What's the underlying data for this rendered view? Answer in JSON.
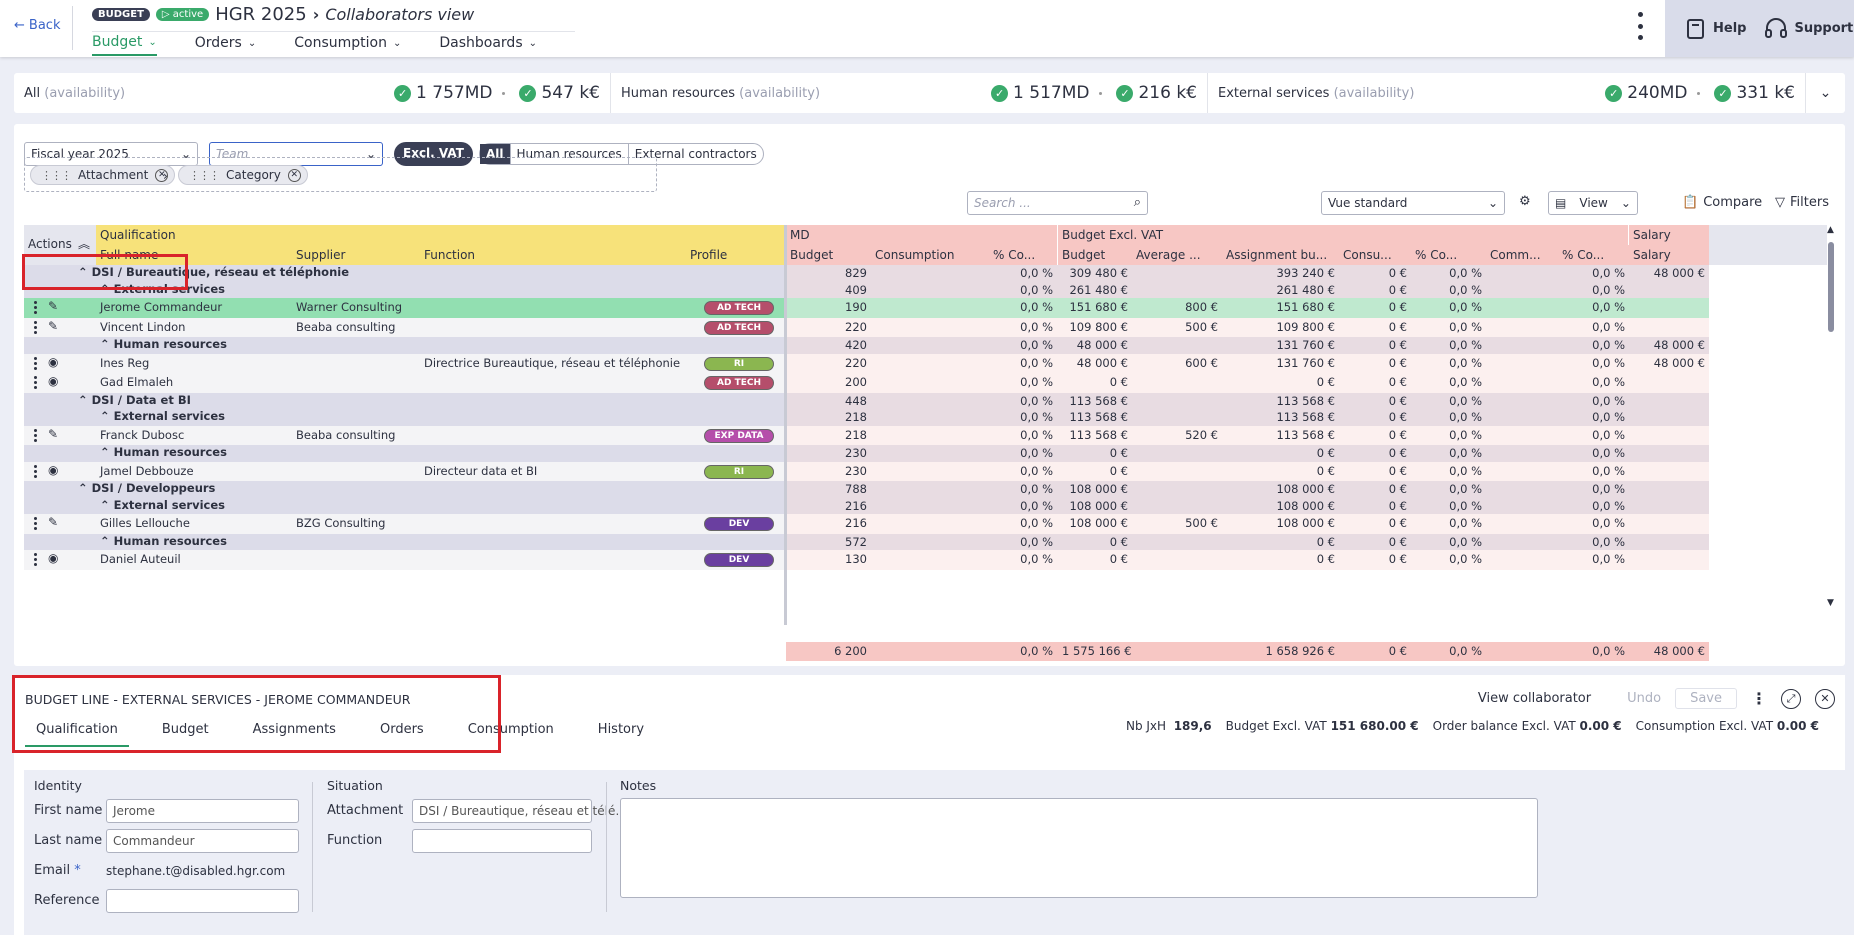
{
  "header": {
    "back": "Back",
    "badge_budget": "BUDGET",
    "badge_active": "active",
    "title": "HGR 2025",
    "crumb": "Collaborators view",
    "nav": [
      "Budget",
      "Orders",
      "Consumption",
      "Dashboards"
    ],
    "help": "Help",
    "support": "Support"
  },
  "summary": {
    "all_label": "All",
    "availability": "(availability)",
    "all_md": "1 757MD",
    "all_k": "547 k€",
    "hr_label": "Human resources",
    "hr_md": "1 517MD",
    "hr_k": "216 k€",
    "ext_label": "External services",
    "ext_md": "240MD",
    "ext_k": "331 k€"
  },
  "filters": {
    "fiscal_year": "Fiscal year 2025",
    "team_placeholder": "Team",
    "excl_vat": "Excl. VAT",
    "seg": [
      "All",
      "Human resources",
      "External contractors"
    ],
    "chip_attachment": "Attachment",
    "chip_category": "Category",
    "search_placeholder": "Search ...",
    "view_select": "Vue standard",
    "view": "View",
    "compare": "Compare",
    "filters": "Filters"
  },
  "grid": {
    "top_headers": {
      "actions": "Actions",
      "qualification": "Qualification",
      "md": "MD",
      "budget_excl": "Budget Excl. VAT",
      "salary": "Salary"
    },
    "sub_headers": {
      "full_name": "Full name",
      "supplier": "Supplier",
      "function": "Function",
      "profile": "Profile",
      "md_budget": "Budget",
      "md_consumption": "Consumption",
      "md_pct": "% Co...",
      "b_budget": "Budget",
      "b_avg": "Average ...",
      "b_assign": "Assignment bu...",
      "b_cons": "Consu...",
      "b_pct": "% Co...",
      "b_comm": "Comm...",
      "b_pct2": "% Co...",
      "salary": "Salary"
    },
    "rows": [
      {
        "type": "group",
        "level": 0,
        "name": "DSI / Bureautique, réseau et téléphonie",
        "md_budget": "829",
        "md_pct": "0,0 %",
        "b_budget": "309 480 €",
        "b_avg": "",
        "b_assign": "393 240 €",
        "b_cons": "0 €",
        "b_pct": "0,0 %",
        "b_pct2": "0,0 %",
        "salary": "48 000 €"
      },
      {
        "type": "group",
        "level": 1,
        "name": "External services",
        "md_budget": "409",
        "md_pct": "0,0 %",
        "b_budget": "261 480 €",
        "b_avg": "",
        "b_assign": "261 480 €",
        "b_cons": "0 €",
        "b_pct": "0,0 %",
        "b_pct2": "0,0 %",
        "salary": ""
      },
      {
        "type": "data",
        "sel": true,
        "icon": "edit",
        "name": "Jerome Commandeur",
        "supplier": "Warner Consulting",
        "function": "",
        "profile": "AD TECH",
        "md_budget": "190",
        "md_pct": "0,0 %",
        "b_budget": "151 680 €",
        "b_avg": "800 €",
        "b_assign": "151 680 €",
        "b_cons": "0 €",
        "b_pct": "0,0 %",
        "b_pct2": "0,0 %",
        "salary": ""
      },
      {
        "type": "data",
        "icon": "edit",
        "name": "Vincent Lindon",
        "supplier": "Beaba consulting",
        "function": "",
        "profile": "AD TECH",
        "md_budget": "220",
        "md_pct": "0,0 %",
        "b_budget": "109 800 €",
        "b_avg": "500 €",
        "b_assign": "109 800 €",
        "b_cons": "0 €",
        "b_pct": "0,0 %",
        "b_pct2": "0,0 %",
        "salary": ""
      },
      {
        "type": "group",
        "level": 1,
        "name": "Human resources",
        "md_budget": "420",
        "md_pct": "0,0 %",
        "b_budget": "48 000 €",
        "b_avg": "",
        "b_assign": "131 760 €",
        "b_cons": "0 €",
        "b_pct": "0,0 %",
        "b_pct2": "0,0 %",
        "salary": "48 000 €"
      },
      {
        "type": "data",
        "icon": "view",
        "name": "Ines Reg",
        "supplier": "",
        "function": "Directrice Bureautique, réseau et téléphonie",
        "profile": "RI",
        "md_budget": "220",
        "md_pct": "0,0 %",
        "b_budget": "48 000 €",
        "b_avg": "600 €",
        "b_assign": "131 760 €",
        "b_cons": "0 €",
        "b_pct": "0,0 %",
        "b_pct2": "0,0 %",
        "salary": "48 000 €"
      },
      {
        "type": "data",
        "icon": "view",
        "name": "Gad Elmaleh",
        "supplier": "",
        "function": "",
        "profile": "AD TECH",
        "md_budget": "200",
        "md_pct": "0,0 %",
        "b_budget": "0 €",
        "b_avg": "",
        "b_assign": "0 €",
        "b_cons": "0 €",
        "b_pct": "0,0 %",
        "b_pct2": "0,0 %",
        "salary": ""
      },
      {
        "type": "group",
        "level": 0,
        "name": "DSI / Data et BI",
        "md_budget": "448",
        "md_pct": "0,0 %",
        "b_budget": "113 568 €",
        "b_avg": "",
        "b_assign": "113 568 €",
        "b_cons": "0 €",
        "b_pct": "0,0 %",
        "b_pct2": "0,0 %",
        "salary": ""
      },
      {
        "type": "group",
        "level": 1,
        "name": "External services",
        "md_budget": "218",
        "md_pct": "0,0 %",
        "b_budget": "113 568 €",
        "b_avg": "",
        "b_assign": "113 568 €",
        "b_cons": "0 €",
        "b_pct": "0,0 %",
        "b_pct2": "0,0 %",
        "salary": ""
      },
      {
        "type": "data",
        "icon": "edit",
        "name": "Franck Dubosc",
        "supplier": "Beaba consulting",
        "function": "",
        "profile": "EXP DATA",
        "md_budget": "218",
        "md_pct": "0,0 %",
        "b_budget": "113 568 €",
        "b_avg": "520 €",
        "b_assign": "113 568 €",
        "b_cons": "0 €",
        "b_pct": "0,0 %",
        "b_pct2": "0,0 %",
        "salary": ""
      },
      {
        "type": "group",
        "level": 1,
        "name": "Human resources",
        "md_budget": "230",
        "md_pct": "0,0 %",
        "b_budget": "0 €",
        "b_avg": "",
        "b_assign": "0 €",
        "b_cons": "0 €",
        "b_pct": "0,0 %",
        "b_pct2": "0,0 %",
        "salary": ""
      },
      {
        "type": "data",
        "icon": "view",
        "name": "Jamel Debbouze",
        "supplier": "",
        "function": "Directeur data et BI",
        "profile": "RI",
        "md_budget": "230",
        "md_pct": "0,0 %",
        "b_budget": "0 €",
        "b_avg": "",
        "b_assign": "0 €",
        "b_cons": "0 €",
        "b_pct": "0,0 %",
        "b_pct2": "0,0 %",
        "salary": ""
      },
      {
        "type": "group",
        "level": 0,
        "name": "DSI / Developpeurs",
        "md_budget": "788",
        "md_pct": "0,0 %",
        "b_budget": "108 000 €",
        "b_avg": "",
        "b_assign": "108 000 €",
        "b_cons": "0 €",
        "b_pct": "0,0 %",
        "b_pct2": "0,0 %",
        "salary": ""
      },
      {
        "type": "group",
        "level": 1,
        "name": "External services",
        "md_budget": "216",
        "md_pct": "0,0 %",
        "b_budget": "108 000 €",
        "b_avg": "",
        "b_assign": "108 000 €",
        "b_cons": "0 €",
        "b_pct": "0,0 %",
        "b_pct2": "0,0 %",
        "salary": ""
      },
      {
        "type": "data",
        "icon": "edit",
        "name": "Gilles Lellouche",
        "supplier": "BZG Consulting",
        "function": "",
        "profile": "DEV",
        "md_budget": "216",
        "md_pct": "0,0 %",
        "b_budget": "108 000 €",
        "b_avg": "500 €",
        "b_assign": "108 000 €",
        "b_cons": "0 €",
        "b_pct": "0,0 %",
        "b_pct2": "0,0 %",
        "salary": ""
      },
      {
        "type": "group",
        "level": 1,
        "name": "Human resources",
        "md_budget": "572",
        "md_pct": "0,0 %",
        "b_budget": "0 €",
        "b_avg": "",
        "b_assign": "0 €",
        "b_cons": "0 €",
        "b_pct": "0,0 %",
        "b_pct2": "0,0 %",
        "salary": ""
      },
      {
        "type": "data",
        "icon": "view",
        "name": "Daniel Auteuil",
        "supplier": "",
        "function": "",
        "profile": "DEV",
        "md_budget": "130",
        "md_pct": "0,0 %",
        "b_budget": "0 €",
        "b_avg": "",
        "b_assign": "0 €",
        "b_cons": "0 €",
        "b_pct": "0,0 %",
        "b_pct2": "0,0 %",
        "salary": ""
      }
    ],
    "totals": {
      "md_budget": "6 200",
      "md_pct": "0,0 %",
      "b_budget": "1 575 166 €",
      "b_assign": "1 658 926 €",
      "b_cons": "0 €",
      "b_pct": "0,0 %",
      "b_pct2": "0,0 %",
      "salary": "48 000 €"
    }
  },
  "detail": {
    "title": "BUDGET LINE - EXTERNAL SERVICES - JEROME COMMANDEUR",
    "tabs": [
      "Qualification",
      "Budget",
      "Assignments",
      "Orders",
      "Consumption",
      "History"
    ],
    "view_collaborator": "View collaborator",
    "undo": "Undo",
    "save": "Save",
    "stats": {
      "nb_label": "Nb JxH",
      "nb_value": "189,6",
      "budget_label": "Budget Excl. VAT",
      "budget_value": "151 680.00 €",
      "order_label": "Order balance Excl. VAT",
      "order_value": "0.00 €",
      "cons_label": "Consumption Excl. VAT",
      "cons_value": "0.00 €"
    },
    "identity_title": "Identity",
    "first_name_label": "First name",
    "first_name": "Jerome",
    "last_name_label": "Last name",
    "last_name": "Commandeur",
    "email_label": "Email",
    "email": "stephane.t@disabled.hgr.com",
    "reference_label": "Reference",
    "reference": "",
    "situation_title": "Situation",
    "attachment_label": "Attachment",
    "attachment": "DSI / Bureautique, réseau et télé…",
    "function_label": "Function",
    "function": "",
    "notes_title": "Notes",
    "required_mark": "*"
  }
}
